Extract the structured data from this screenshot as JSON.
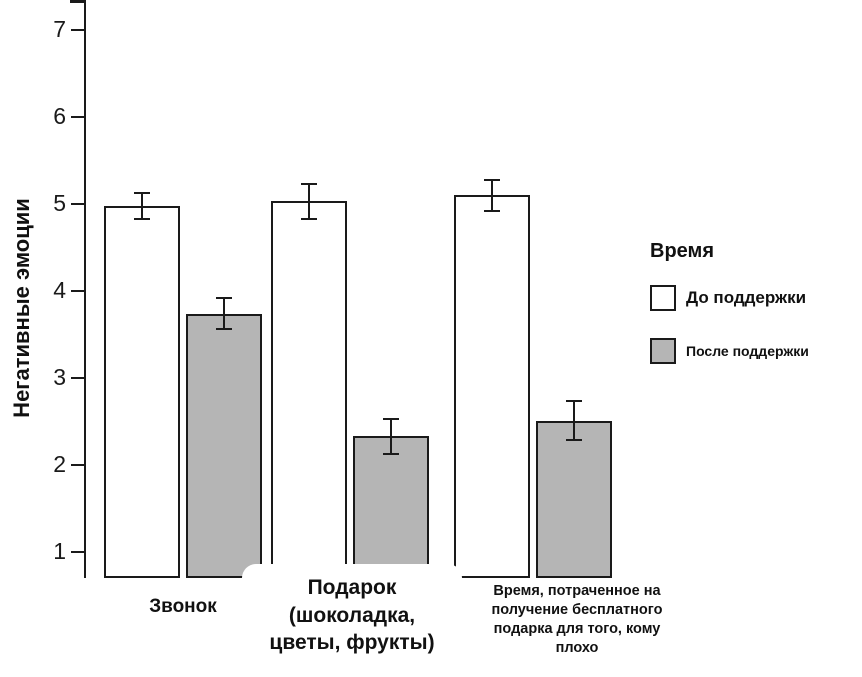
{
  "chart_data": {
    "type": "bar",
    "title": "",
    "xlabel": "",
    "ylabel": "Негативные эмоции",
    "legend_title": "Время",
    "legend_position": "right",
    "grid": false,
    "ylim": [
      0.7,
      7.35
    ],
    "yticks": [
      1,
      2,
      3,
      4,
      5,
      6,
      7
    ],
    "categories": [
      "Звонок",
      "Подарок (шоколадка, цветы, фрукты)",
      "Время, потраченное на получение бесплатного подарка для того, кому плохо"
    ],
    "series": [
      {
        "name": "До поддержки",
        "color": "#ffffff",
        "values": [
          4.98,
          5.03,
          5.1
        ],
        "errors": [
          0.15,
          0.2,
          0.18
        ]
      },
      {
        "name": "После поддержки",
        "color": "#b5b5b5",
        "values": [
          3.74,
          2.33,
          2.51
        ],
        "errors": [
          0.18,
          0.2,
          0.22
        ]
      }
    ]
  },
  "x_labels": [
    {
      "lines": [
        "Звонок"
      ]
    },
    {
      "lines": [
        "Подарок",
        "(шоколадка,",
        "цветы, фрукты)"
      ]
    },
    {
      "lines": [
        "Время, потраченное на",
        "получение бесплатного",
        "подарка для того, кому",
        "плохо"
      ]
    }
  ]
}
